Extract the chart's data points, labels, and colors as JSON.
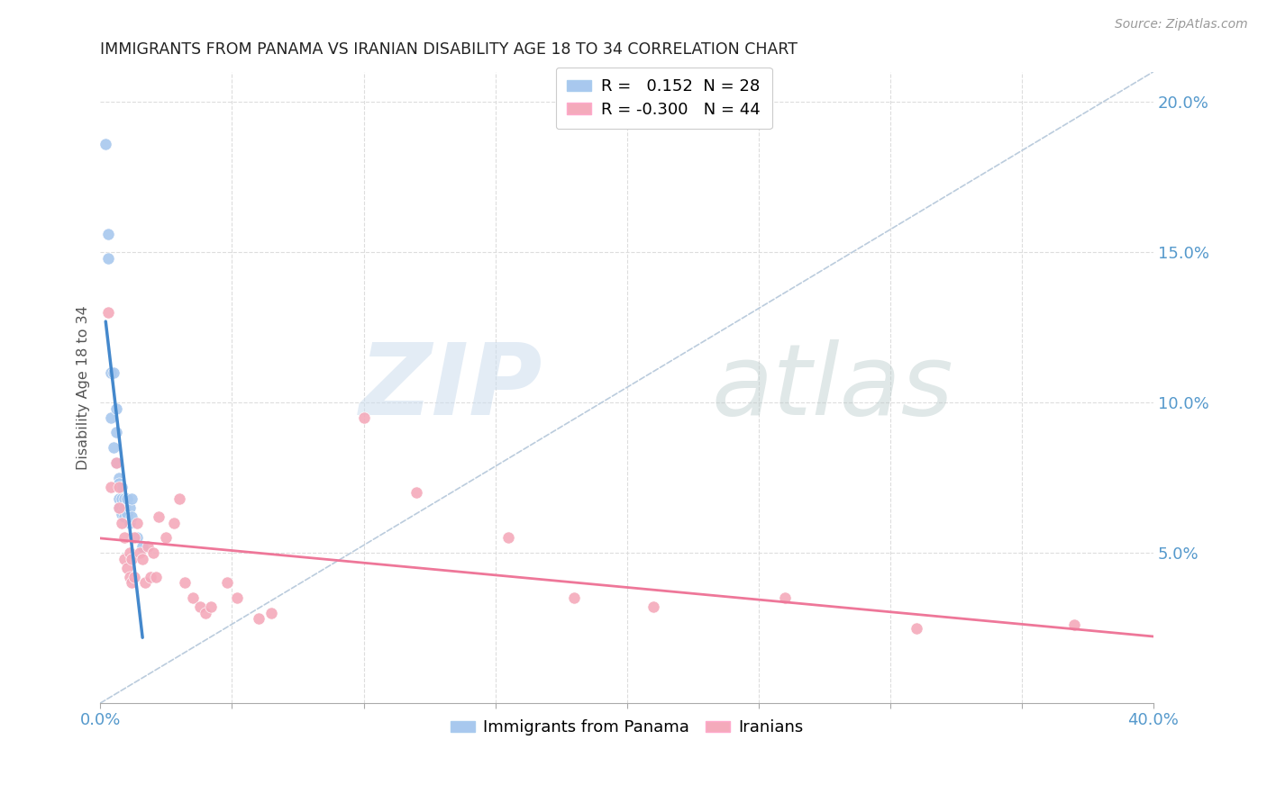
{
  "title": "IMMIGRANTS FROM PANAMA VS IRANIAN DISABILITY AGE 18 TO 34 CORRELATION CHART",
  "source": "Source: ZipAtlas.com",
  "ylabel": "Disability Age 18 to 34",
  "xlim": [
    0.0,
    0.4
  ],
  "ylim": [
    0.0,
    0.21
  ],
  "xticks": [
    0.0,
    0.05,
    0.1,
    0.15,
    0.2,
    0.25,
    0.3,
    0.35,
    0.4
  ],
  "yticks_right": [
    0.05,
    0.1,
    0.15,
    0.2
  ],
  "ytick_right_labels": [
    "5.0%",
    "10.0%",
    "15.0%",
    "20.0%"
  ],
  "panama_color": "#A8C8EE",
  "iranian_color": "#F4AABB",
  "panama_line_color": "#4488CC",
  "iranian_line_color": "#EE7799",
  "diag_line_color": "#BBCCDD",
  "panama_x": [
    0.002,
    0.003,
    0.003,
    0.004,
    0.004,
    0.005,
    0.005,
    0.006,
    0.006,
    0.006,
    0.007,
    0.007,
    0.007,
    0.007,
    0.008,
    0.008,
    0.008,
    0.009,
    0.009,
    0.009,
    0.01,
    0.01,
    0.011,
    0.011,
    0.012,
    0.012,
    0.014,
    0.016
  ],
  "panama_y": [
    0.186,
    0.148,
    0.156,
    0.11,
    0.095,
    0.085,
    0.11,
    0.098,
    0.09,
    0.08,
    0.075,
    0.073,
    0.068,
    0.065,
    0.072,
    0.068,
    0.063,
    0.068,
    0.065,
    0.062,
    0.063,
    0.068,
    0.06,
    0.065,
    0.062,
    0.068,
    0.055,
    0.052
  ],
  "iranian_x": [
    0.003,
    0.004,
    0.006,
    0.007,
    0.007,
    0.008,
    0.009,
    0.009,
    0.01,
    0.011,
    0.011,
    0.012,
    0.012,
    0.013,
    0.013,
    0.014,
    0.015,
    0.016,
    0.017,
    0.018,
    0.019,
    0.02,
    0.021,
    0.022,
    0.025,
    0.028,
    0.03,
    0.032,
    0.035,
    0.038,
    0.04,
    0.042,
    0.048,
    0.052,
    0.06,
    0.065,
    0.1,
    0.12,
    0.155,
    0.18,
    0.21,
    0.26,
    0.31,
    0.37
  ],
  "iranian_y": [
    0.13,
    0.072,
    0.08,
    0.065,
    0.072,
    0.06,
    0.048,
    0.055,
    0.045,
    0.05,
    0.042,
    0.048,
    0.04,
    0.042,
    0.055,
    0.06,
    0.05,
    0.048,
    0.04,
    0.052,
    0.042,
    0.05,
    0.042,
    0.062,
    0.055,
    0.06,
    0.068,
    0.04,
    0.035,
    0.032,
    0.03,
    0.032,
    0.04,
    0.035,
    0.028,
    0.03,
    0.095,
    0.07,
    0.055,
    0.035,
    0.032,
    0.035,
    0.025,
    0.026
  ]
}
